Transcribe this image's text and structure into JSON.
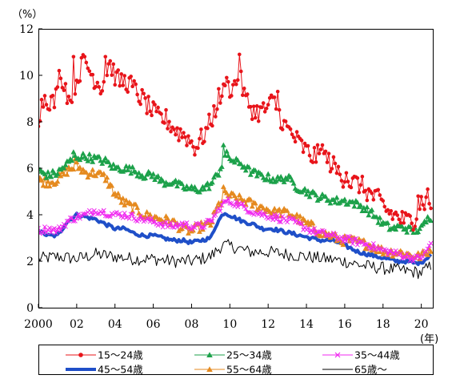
{
  "chart_data": {
    "type": "line",
    "y_unit": "（%）",
    "x_unit": "(年)",
    "xlim": [
      2000,
      2020.6
    ],
    "ylim": [
      0,
      12
    ],
    "yticks": [
      0,
      2,
      4,
      6,
      8,
      10,
      12
    ],
    "xticks": [
      2000,
      2002,
      2004,
      2006,
      2008,
      2010,
      2012,
      2014,
      2016,
      2018,
      2020
    ],
    "xtick_labels": [
      "2000",
      "02",
      "04",
      "06",
      "08",
      "10",
      "12",
      "14",
      "16",
      "18",
      "20"
    ],
    "grid": false,
    "legend_position": "bottom",
    "series": [
      {
        "name": "15～24歳",
        "color": "#e8141a",
        "marker": "circle",
        "line_width": 1,
        "knots": [
          [
            2000,
            8.2
          ],
          [
            2000.3,
            9.1
          ],
          [
            2000.8,
            8.8
          ],
          [
            2001.3,
            9.9
          ],
          [
            2001.6,
            8.9
          ],
          [
            2002,
            9.8
          ],
          [
            2002.4,
            10.7
          ],
          [
            2002.8,
            10.0
          ],
          [
            2003.3,
            9.5
          ],
          [
            2003.7,
            10.6
          ],
          [
            2004.1,
            9.8
          ],
          [
            2004.7,
            9.7
          ],
          [
            2005.2,
            9.2
          ],
          [
            2005.7,
            8.7
          ],
          [
            2006.2,
            8.2
          ],
          [
            2006.7,
            8.1
          ],
          [
            2007.2,
            7.6
          ],
          [
            2007.7,
            7.4
          ],
          [
            2008.2,
            6.9
          ],
          [
            2008.7,
            7.5
          ],
          [
            2009.1,
            8.2
          ],
          [
            2009.4,
            9.0
          ],
          [
            2009.8,
            9.4
          ],
          [
            2010.2,
            9.5
          ],
          [
            2010.5,
            10.0
          ],
          [
            2010.8,
            9.0
          ],
          [
            2011.3,
            8.4
          ],
          [
            2011.8,
            8.5
          ],
          [
            2012.3,
            8.9
          ],
          [
            2012.8,
            7.9
          ],
          [
            2013.3,
            7.4
          ],
          [
            2013.8,
            6.9
          ],
          [
            2014.3,
            6.5
          ],
          [
            2014.8,
            6.6
          ],
          [
            2015.3,
            6.2
          ],
          [
            2015.8,
            5.7
          ],
          [
            2016.3,
            5.4
          ],
          [
            2016.8,
            5.3
          ],
          [
            2017.3,
            4.9
          ],
          [
            2017.8,
            4.6
          ],
          [
            2018.3,
            4.1
          ],
          [
            2018.8,
            3.9
          ],
          [
            2019.2,
            3.7
          ],
          [
            2019.6,
            3.8
          ],
          [
            2020,
            4.6
          ],
          [
            2020.4,
            4.5
          ]
        ],
        "spikes": [
          [
            2001.1,
            10.2
          ],
          [
            2001.8,
            10.8
          ],
          [
            2002.4,
            10.8
          ],
          [
            2003.5,
            10.8
          ],
          [
            2009.8,
            9.9
          ],
          [
            2010.5,
            10.9
          ],
          [
            2012.5,
            9.3
          ],
          [
            2014.8,
            7.0
          ],
          [
            2016.1,
            5.8
          ],
          [
            2018.0,
            4.6
          ],
          [
            2019.8,
            4.8
          ],
          [
            2020.3,
            5.1
          ]
        ]
      },
      {
        "name": "25～34歳",
        "color": "#1ca14a",
        "marker": "triangle",
        "line_width": 1,
        "knots": [
          [
            2000,
            5.9
          ],
          [
            2000.5,
            5.7
          ],
          [
            2001,
            5.8
          ],
          [
            2001.5,
            6.2
          ],
          [
            2002,
            6.5
          ],
          [
            2002.5,
            6.5
          ],
          [
            2003,
            6.4
          ],
          [
            2003.5,
            6.3
          ],
          [
            2004,
            6.0
          ],
          [
            2004.5,
            6.0
          ],
          [
            2005,
            5.9
          ],
          [
            2005.5,
            5.7
          ],
          [
            2006,
            5.7
          ],
          [
            2006.5,
            5.4
          ],
          [
            2007,
            5.4
          ],
          [
            2007.5,
            5.2
          ],
          [
            2008,
            5.1
          ],
          [
            2008.5,
            5.1
          ],
          [
            2009,
            5.3
          ],
          [
            2009.4,
            5.8
          ],
          [
            2009.8,
            6.6
          ],
          [
            2010.2,
            6.3
          ],
          [
            2010.6,
            6.2
          ],
          [
            2011,
            5.9
          ],
          [
            2011.5,
            5.7
          ],
          [
            2012,
            5.6
          ],
          [
            2012.5,
            5.5
          ],
          [
            2013,
            5.6
          ],
          [
            2013.5,
            5.2
          ],
          [
            2014,
            5.0
          ],
          [
            2014.5,
            4.8
          ],
          [
            2015,
            4.7
          ],
          [
            2015.5,
            4.6
          ],
          [
            2016,
            4.6
          ],
          [
            2016.5,
            4.5
          ],
          [
            2017,
            4.3
          ],
          [
            2017.5,
            4.0
          ],
          [
            2018,
            3.6
          ],
          [
            2018.5,
            3.4
          ],
          [
            2019,
            3.5
          ],
          [
            2019.5,
            3.3
          ],
          [
            2020,
            3.4
          ],
          [
            2020.4,
            3.9
          ]
        ],
        "spikes": [
          [
            2009.7,
            7.0
          ],
          [
            2001.8,
            6.7
          ]
        ]
      },
      {
        "name": "35～44歳",
        "color": "#f028f0",
        "marker": "x",
        "line_width": 1,
        "knots": [
          [
            2000,
            3.3
          ],
          [
            2000.5,
            3.4
          ],
          [
            2001,
            3.3
          ],
          [
            2001.5,
            3.7
          ],
          [
            2002,
            3.9
          ],
          [
            2002.5,
            4.0
          ],
          [
            2003,
            4.2
          ],
          [
            2003.5,
            4.1
          ],
          [
            2004,
            4.0
          ],
          [
            2004.5,
            4.0
          ],
          [
            2005,
            3.9
          ],
          [
            2005.5,
            3.8
          ],
          [
            2006,
            3.7
          ],
          [
            2006.5,
            3.6
          ],
          [
            2007,
            3.5
          ],
          [
            2007.5,
            3.6
          ],
          [
            2008,
            3.5
          ],
          [
            2008.5,
            3.5
          ],
          [
            2009,
            3.7
          ],
          [
            2009.4,
            4.2
          ],
          [
            2009.8,
            4.6
          ],
          [
            2010.3,
            4.5
          ],
          [
            2010.8,
            4.3
          ],
          [
            2011.3,
            4.1
          ],
          [
            2011.8,
            4.0
          ],
          [
            2012.3,
            3.9
          ],
          [
            2012.8,
            3.8
          ],
          [
            2013.3,
            3.7
          ],
          [
            2013.8,
            3.5
          ],
          [
            2014.3,
            3.3
          ],
          [
            2014.8,
            3.2
          ],
          [
            2015.3,
            3.1
          ],
          [
            2015.8,
            3.0
          ],
          [
            2016.3,
            2.9
          ],
          [
            2016.8,
            2.8
          ],
          [
            2017.3,
            2.7
          ],
          [
            2017.8,
            2.5
          ],
          [
            2018.3,
            2.4
          ],
          [
            2018.8,
            2.3
          ],
          [
            2019.3,
            2.2
          ],
          [
            2019.8,
            2.1
          ],
          [
            2020.2,
            2.3
          ],
          [
            2020.5,
            2.8
          ]
        ],
        "spikes": []
      },
      {
        "name": "45～54歳",
        "color": "#1f4fc8",
        "marker": "none",
        "line_width": 4,
        "knots": [
          [
            2000,
            3.3
          ],
          [
            2000.5,
            3.1
          ],
          [
            2001,
            3.1
          ],
          [
            2001.5,
            3.7
          ],
          [
            2002,
            4.0
          ],
          [
            2002.5,
            3.9
          ],
          [
            2003,
            3.8
          ],
          [
            2003.5,
            3.6
          ],
          [
            2004,
            3.4
          ],
          [
            2004.5,
            3.4
          ],
          [
            2005,
            3.2
          ],
          [
            2005.5,
            3.1
          ],
          [
            2006,
            3.1
          ],
          [
            2006.5,
            3.0
          ],
          [
            2007,
            2.9
          ],
          [
            2007.5,
            2.9
          ],
          [
            2008,
            2.8
          ],
          [
            2008.5,
            2.9
          ],
          [
            2009,
            3.0
          ],
          [
            2009.3,
            3.6
          ],
          [
            2009.7,
            4.1
          ],
          [
            2010.2,
            3.9
          ],
          [
            2010.7,
            3.7
          ],
          [
            2011.2,
            3.6
          ],
          [
            2011.7,
            3.4
          ],
          [
            2012.2,
            3.4
          ],
          [
            2012.7,
            3.3
          ],
          [
            2013.2,
            3.2
          ],
          [
            2013.7,
            3.1
          ],
          [
            2014.2,
            3.0
          ],
          [
            2014.7,
            2.9
          ],
          [
            2015.2,
            2.9
          ],
          [
            2015.7,
            2.8
          ],
          [
            2016.2,
            2.6
          ],
          [
            2016.7,
            2.4
          ],
          [
            2017.2,
            2.3
          ],
          [
            2017.7,
            2.2
          ],
          [
            2018.2,
            2.1
          ],
          [
            2018.7,
            2.0
          ],
          [
            2019.2,
            2.0
          ],
          [
            2019.7,
            1.9
          ],
          [
            2020.1,
            2.0
          ],
          [
            2020.5,
            2.3
          ]
        ],
        "spikes": []
      },
      {
        "name": "55～64歳",
        "color": "#e58a1f",
        "marker": "triangle",
        "line_width": 1,
        "knots": [
          [
            2000,
            5.5
          ],
          [
            2000.5,
            5.4
          ],
          [
            2001,
            5.5
          ],
          [
            2001.5,
            5.9
          ],
          [
            2002,
            6.1
          ],
          [
            2002.5,
            5.8
          ],
          [
            2003,
            5.8
          ],
          [
            2003.5,
            5.6
          ],
          [
            2004,
            4.9
          ],
          [
            2004.5,
            4.5
          ],
          [
            2005,
            4.3
          ],
          [
            2005.5,
            4.0
          ],
          [
            2006,
            3.9
          ],
          [
            2006.5,
            3.8
          ],
          [
            2007,
            3.7
          ],
          [
            2007.5,
            3.4
          ],
          [
            2008,
            3.3
          ],
          [
            2008.5,
            3.5
          ],
          [
            2009,
            3.6
          ],
          [
            2009.4,
            4.4
          ],
          [
            2009.8,
            4.9
          ],
          [
            2010.3,
            4.7
          ],
          [
            2010.8,
            4.6
          ],
          [
            2011.3,
            4.4
          ],
          [
            2011.8,
            4.3
          ],
          [
            2012.3,
            4.1
          ],
          [
            2012.8,
            4.1
          ],
          [
            2013.3,
            4.0
          ],
          [
            2013.8,
            3.7
          ],
          [
            2014.3,
            3.5
          ],
          [
            2014.8,
            3.2
          ],
          [
            2015.3,
            3.1
          ],
          [
            2015.8,
            2.9
          ],
          [
            2016.3,
            2.9
          ],
          [
            2016.8,
            2.8
          ],
          [
            2017.3,
            2.7
          ],
          [
            2017.8,
            2.5
          ],
          [
            2018.3,
            2.4
          ],
          [
            2018.8,
            2.4
          ],
          [
            2019.3,
            2.3
          ],
          [
            2019.8,
            2.2
          ],
          [
            2020.2,
            2.3
          ],
          [
            2020.5,
            2.6
          ]
        ],
        "spikes": [
          [
            2001.9,
            6.4
          ],
          [
            2009.7,
            5.2
          ]
        ]
      },
      {
        "name": "65歳～",
        "color": "#000000",
        "marker": "none",
        "line_width": 1,
        "knots": [
          [
            2000,
            2.1
          ],
          [
            2001,
            2.2
          ],
          [
            2002,
            2.1
          ],
          [
            2003,
            2.3
          ],
          [
            2004,
            2.2
          ],
          [
            2005,
            2.1
          ],
          [
            2006,
            2.1
          ],
          [
            2007,
            2.0
          ],
          [
            2008,
            2.0
          ],
          [
            2009,
            2.2
          ],
          [
            2009.6,
            2.7
          ],
          [
            2010.3,
            2.6
          ],
          [
            2011,
            2.4
          ],
          [
            2012,
            2.4
          ],
          [
            2013,
            2.3
          ],
          [
            2014,
            2.2
          ],
          [
            2015,
            2.1
          ],
          [
            2016,
            2.0
          ],
          [
            2017,
            1.8
          ],
          [
            2018,
            1.7
          ],
          [
            2019,
            1.6
          ],
          [
            2020,
            1.5
          ],
          [
            2020.5,
            1.8
          ]
        ],
        "spikes": []
      }
    ]
  }
}
